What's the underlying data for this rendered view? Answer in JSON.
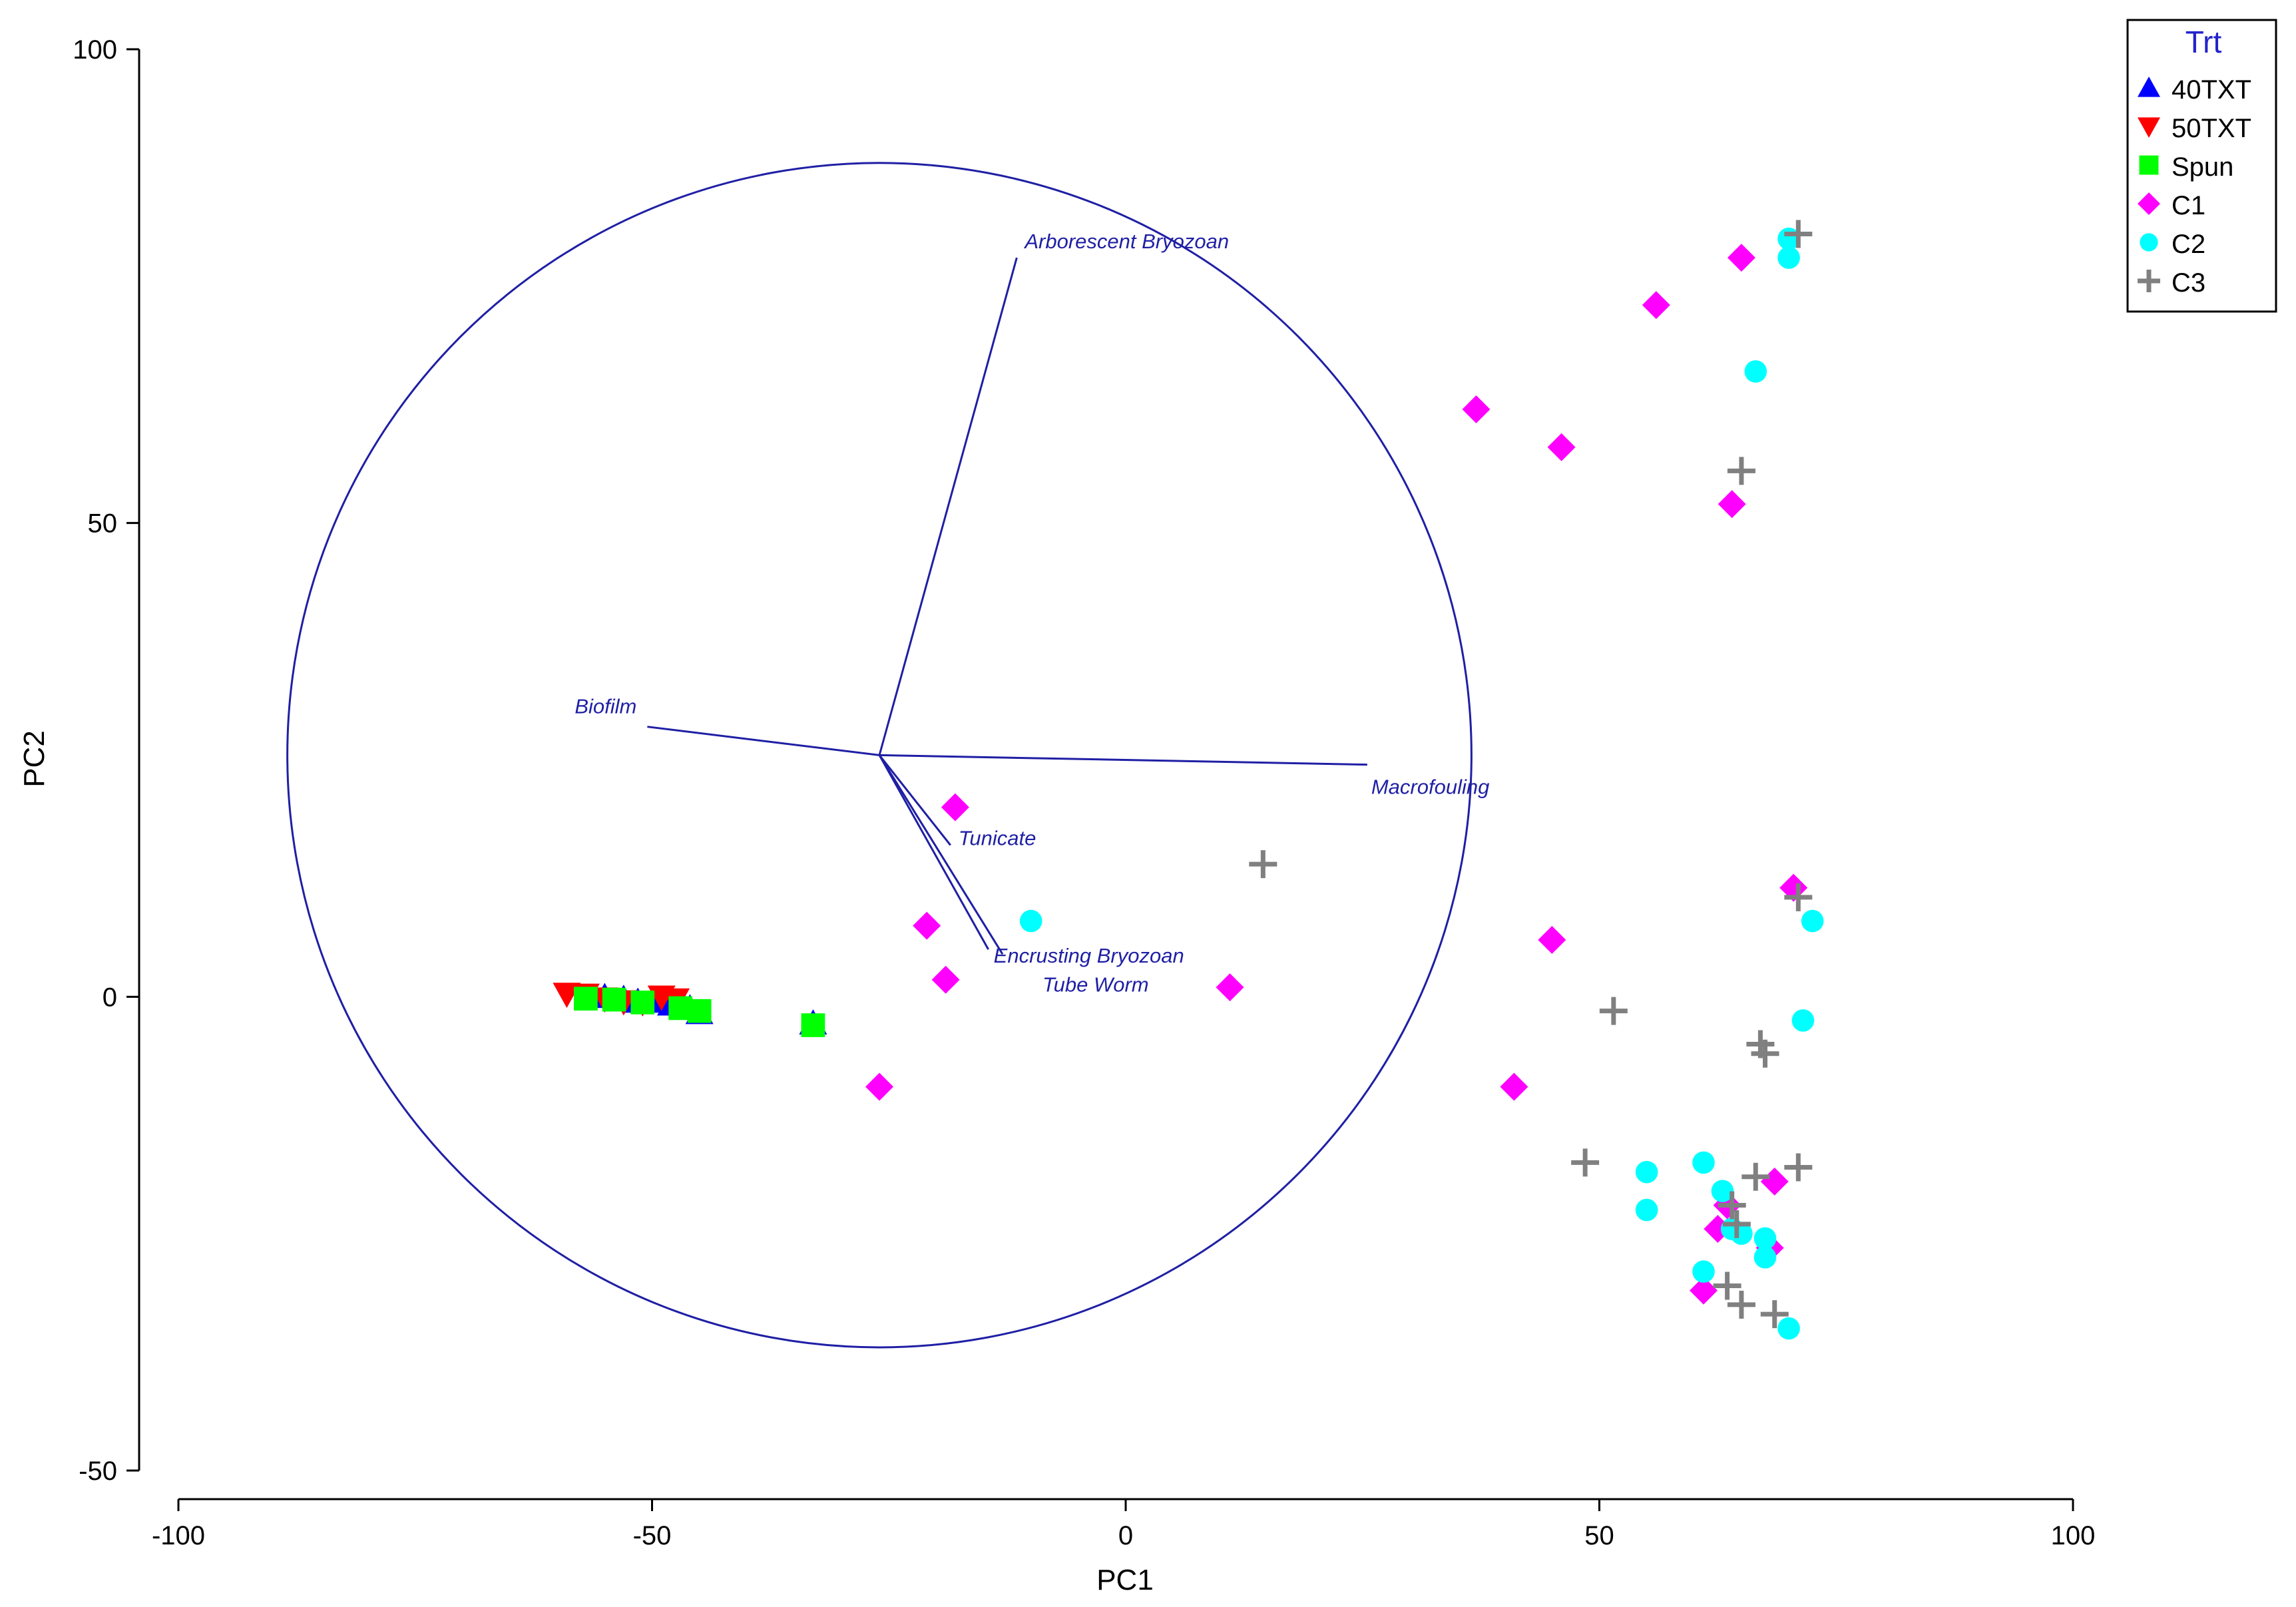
{
  "chart_data": {
    "type": "scatter",
    "title": "",
    "xlabel": "PC1",
    "ylabel": "PC2",
    "xlim": [
      -100,
      100
    ],
    "ylim": [
      -50,
      100
    ],
    "x_ticks": [
      -100,
      -50,
      0,
      50,
      100
    ],
    "y_ticks": [
      -50,
      0,
      50,
      100
    ],
    "grid": false,
    "legend": {
      "title": "Trt",
      "position": "top-right",
      "entries": [
        {
          "label": "40TXT",
          "marker": "triangle-up",
          "color": "#0000ff"
        },
        {
          "label": "50TXT",
          "marker": "triangle-down",
          "color": "#ff0000"
        },
        {
          "label": "Spun",
          "marker": "square",
          "color": "#00ff00"
        },
        {
          "label": "C1",
          "marker": "diamond",
          "color": "#ff00ff"
        },
        {
          "label": "C2",
          "marker": "circle",
          "color": "#00ffff"
        },
        {
          "label": "C3",
          "marker": "plus",
          "color": "#808080"
        }
      ]
    },
    "correlation_circle": {
      "center": [
        -26,
        25.5
      ],
      "radius": 62.5,
      "color": "#1f1fa5"
    },
    "vectors": [
      {
        "label": "Arborescent Bryozoan",
        "x": -11.5,
        "y": 78
      },
      {
        "label": "Biofilm",
        "x": -50.5,
        "y": 28.5
      },
      {
        "label": "Macrofouling",
        "x": 25.5,
        "y": 24.5
      },
      {
        "label": "Tunicate",
        "x": -18.5,
        "y": 16
      },
      {
        "label": "Encrusting Bryozoan",
        "x": -14.5,
        "y": 5
      },
      {
        "label": "Tube Worm",
        "x": -13,
        "y": 4.5
      }
    ],
    "series": [
      {
        "name": "40TXT",
        "points": [
          [
            -50,
            -0.5
          ],
          [
            -48,
            -0.8
          ],
          [
            -46,
            -1.2
          ],
          [
            -45,
            -1.7
          ],
          [
            -53,
            -0.2
          ],
          [
            -51.5,
            -0.5
          ],
          [
            -55,
            0
          ],
          [
            -33,
            -2.8
          ]
        ]
      },
      {
        "name": "50TXT",
        "points": [
          [
            -59,
            0.3
          ],
          [
            -57,
            0.2
          ],
          [
            -55,
            -0.2
          ],
          [
            -53,
            -0.5
          ],
          [
            -49,
            0
          ],
          [
            -47.5,
            -0.3
          ],
          [
            -51,
            -0.6
          ]
        ]
      },
      {
        "name": "Spun",
        "points": [
          [
            -57,
            -0.2
          ],
          [
            -54,
            -0.3
          ],
          [
            -51,
            -0.6
          ],
          [
            -47,
            -1.2
          ],
          [
            -45,
            -1.5
          ],
          [
            -33,
            -3
          ]
        ]
      },
      {
        "name": "C1",
        "points": [
          [
            -18,
            20
          ],
          [
            -21,
            7.5
          ],
          [
            -19,
            1.8
          ],
          [
            -26,
            -9.5
          ],
          [
            11,
            1
          ],
          [
            37,
            62
          ],
          [
            46,
            58
          ],
          [
            56,
            73
          ],
          [
            65,
            78
          ],
          [
            64,
            52
          ],
          [
            70.5,
            11.5
          ],
          [
            45,
            6
          ],
          [
            41,
            -9.5
          ],
          [
            68.5,
            -19.5
          ],
          [
            62.5,
            -24.5
          ],
          [
            68,
            -26.5
          ],
          [
            61,
            -31
          ],
          [
            63.5,
            -22
          ]
        ]
      },
      {
        "name": "C2",
        "points": [
          [
            -10,
            8
          ],
          [
            70,
            80
          ],
          [
            70,
            78
          ],
          [
            66.5,
            66
          ],
          [
            72.5,
            8
          ],
          [
            71.5,
            -2.5
          ],
          [
            55,
            -18.5
          ],
          [
            55,
            -22.5
          ],
          [
            61,
            -17.5
          ],
          [
            63,
            -20.5
          ],
          [
            64,
            -24.5
          ],
          [
            65,
            -25
          ],
          [
            67.5,
            -25.5
          ],
          [
            67.5,
            -27.5
          ],
          [
            61,
            -29
          ],
          [
            70,
            -35
          ]
        ]
      },
      {
        "name": "C3",
        "points": [
          [
            71,
            80.5
          ],
          [
            65,
            55.5
          ],
          [
            14.5,
            14
          ],
          [
            71,
            10.5
          ],
          [
            51.5,
            -1.5
          ],
          [
            67,
            -5
          ],
          [
            67.5,
            -6
          ],
          [
            48.5,
            -17.5
          ],
          [
            66.5,
            -19
          ],
          [
            71,
            -18
          ],
          [
            64,
            -22
          ],
          [
            64.5,
            -24
          ],
          [
            63.5,
            -30.5
          ],
          [
            65,
            -32.5
          ],
          [
            68.5,
            -33.5
          ]
        ]
      }
    ]
  }
}
